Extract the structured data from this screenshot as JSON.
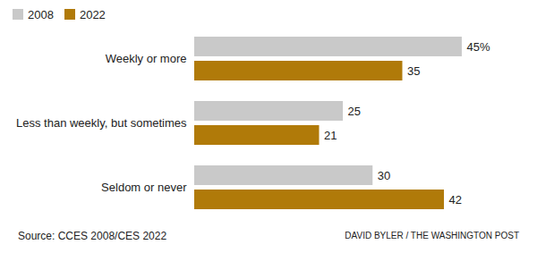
{
  "chart_data": {
    "type": "bar",
    "orientation": "horizontal",
    "categories": [
      "Weekly or more",
      "Less than weekly, but sometimes",
      "Seldom or never"
    ],
    "series": [
      {
        "name": "2008",
        "color": "#c9c9c9",
        "values": [
          45,
          25,
          30
        ],
        "value_labels": [
          "45%",
          "25",
          "30"
        ]
      },
      {
        "name": "2022",
        "color": "#b07a09",
        "values": [
          35,
          21,
          42
        ],
        "value_labels": [
          "35",
          "21",
          "42"
        ]
      }
    ],
    "xlim": [
      0,
      56
    ],
    "data_labels": true,
    "tick_labels": "y",
    "legend": "top-left",
    "source": "Source: CCES 2008/CES 2022",
    "credit": "DAVID BYLER / THE WASHINGTON POST"
  }
}
